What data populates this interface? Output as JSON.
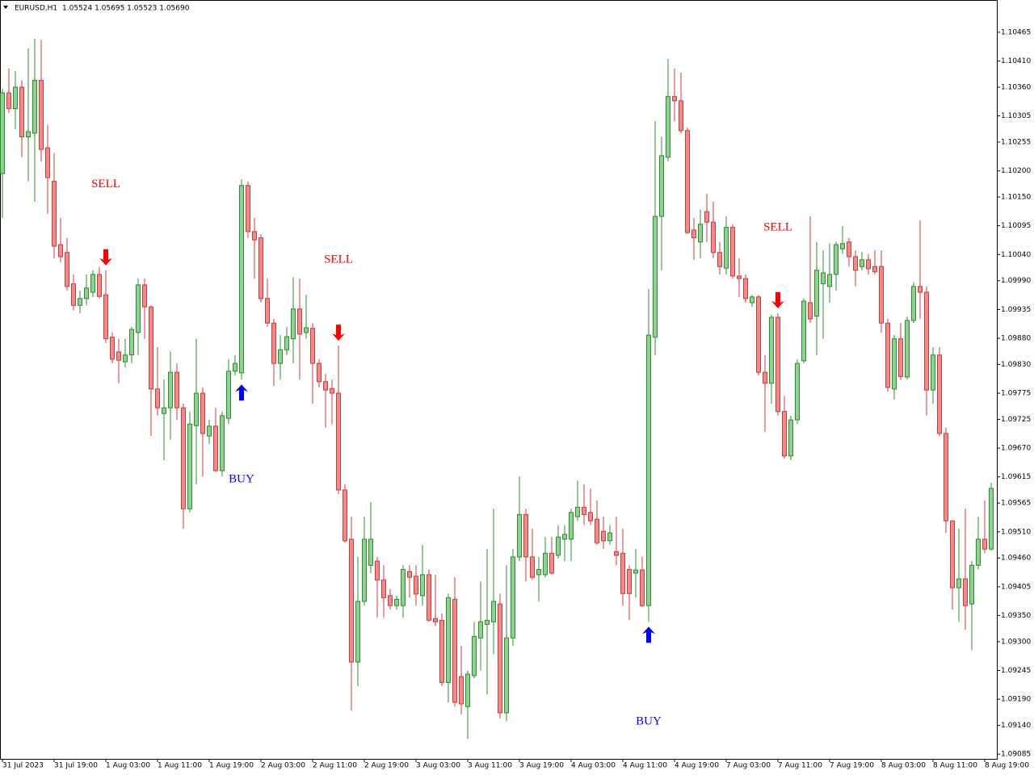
{
  "chart_data": {
    "type": "candlestick",
    "symbol": "EURUSD,H1",
    "quote": "1.05524 1.05695 1.05523 1.05690",
    "up_color": "#8fd28f",
    "up_edge": "#2e8b2e",
    "down_color": "#f28a8a",
    "down_edge": "#c83c3c",
    "ylim": [
      1.09076,
      1.10522
    ],
    "yticks": [
      1.10465,
      {
        "value": 1.1041,
        "label": "1.10410"
      },
      {
        "value": 1.1036,
        "label": "1.10360"
      },
      1.10305,
      1.10255,
      {
        "value": 1.102,
        "label": "1.10200"
      },
      {
        "value": 1.1015,
        "label": "1.10150"
      },
      1.10095,
      {
        "value": 1.1004,
        "label": "1.10040"
      },
      {
        "value": 1.0999,
        "label": "1.09990"
      },
      1.09935,
      {
        "value": 1.0988,
        "label": "1.09880"
      },
      {
        "value": 1.0983,
        "label": "1.09830"
      },
      1.09775,
      1.09725,
      {
        "value": 1.0967,
        "label": "1.09670"
      },
      1.09615,
      1.09565,
      {
        "value": 1.0951,
        "label": "1.09510"
      },
      {
        "value": 1.0946,
        "label": "1.09460"
      },
      1.09405,
      {
        "value": 1.0935,
        "label": "1.09350"
      },
      {
        "value": 1.093,
        "label": "1.09300"
      },
      1.09245,
      {
        "value": 1.0919,
        "label": "1.09190"
      },
      {
        "value": 1.0914,
        "label": "1.09140"
      },
      1.09085
    ],
    "categories": [
      "31 Jul 2023",
      null,
      null,
      null,
      null,
      null,
      null,
      null,
      "31 Jul 19:00",
      null,
      null,
      null,
      null,
      null,
      null,
      null,
      "1 Aug 03:00",
      null,
      null,
      null,
      null,
      null,
      null,
      null,
      "1 Aug 11:00",
      null,
      null,
      null,
      null,
      null,
      null,
      null,
      "1 Aug 19:00",
      null,
      null,
      null,
      null,
      null,
      null,
      null,
      "2 Aug 03:00",
      null,
      null,
      null,
      null,
      null,
      null,
      null,
      "2 Aug 11:00",
      null,
      null,
      null,
      null,
      null,
      null,
      null,
      "2 Aug 19:00",
      null,
      null,
      null,
      null,
      null,
      null,
      null,
      "3 Aug 03:00",
      null,
      null,
      null,
      null,
      null,
      null,
      null,
      "3 Aug 11:00",
      null,
      null,
      null,
      null,
      null,
      null,
      null,
      "3 Aug 19:00",
      null,
      null,
      null,
      null,
      null,
      null,
      null,
      "4 Aug 03:00",
      null,
      null,
      null,
      null,
      null,
      null,
      null,
      "4 Aug 11:00",
      null,
      null,
      null,
      null,
      null,
      null,
      null,
      "4 Aug 19:00",
      null,
      null,
      null,
      null,
      null,
      null,
      null,
      "7 Aug 03:00",
      null,
      null,
      null,
      null,
      null,
      null,
      null,
      "7 Aug 11:00",
      null,
      null,
      null,
      null,
      null,
      null,
      null,
      "7 Aug 19:00",
      null,
      null,
      null,
      null,
      null,
      null,
      null,
      "8 Aug 03:00",
      null,
      null,
      null,
      null,
      null,
      null,
      null,
      "8 Aug 11:00",
      null,
      null,
      null,
      null,
      null,
      null,
      null,
      "8 Aug 19:00",
      null
    ],
    "values": [
      [
        1.10195,
        1.10357,
        1.1011,
        1.10349
      ],
      [
        1.10349,
        1.10396,
        1.10311,
        1.10319
      ],
      [
        1.10319,
        1.10391,
        1.1028,
        1.1036
      ],
      [
        1.1036,
        1.10373,
        1.10226,
        1.10265
      ],
      [
        1.10265,
        1.10434,
        1.1018,
        1.10275
      ],
      [
        1.10272,
        1.10453,
        1.10141,
        1.10373
      ],
      [
        1.10373,
        1.1045,
        1.10218,
        1.10241
      ],
      [
        1.10244,
        1.10288,
        1.10118,
        1.10187
      ],
      [
        1.1018,
        1.10234,
        1.10033,
        1.10056
      ],
      [
        1.10059,
        1.1011,
        1.10025,
        1.10036
      ],
      [
        1.10044,
        1.10072,
        1.09971,
        1.09979
      ],
      [
        1.09984,
        1.10002,
        1.09933,
        1.09943
      ],
      [
        1.09943,
        1.09971,
        1.09928,
        1.09956
      ],
      [
        1.09956,
        1.10002,
        1.09943,
        1.09976
      ],
      [
        1.09968,
        1.1001,
        1.09959,
        1.10002
      ],
      [
        1.10002,
        1.10017,
        1.09956,
        1.0996
      ],
      [
        1.09963,
        1.1001,
        1.09871,
        1.09879
      ],
      [
        1.09882,
        1.09891,
        1.09832,
        1.0984
      ],
      [
        1.09854,
        1.09879,
        1.09794,
        1.09838
      ],
      [
        1.09835,
        1.09879,
        1.09824,
        1.09848
      ],
      [
        1.09848,
        1.09902,
        1.09832,
        1.09897
      ],
      [
        1.09891,
        1.09994,
        1.09848,
        1.09982
      ],
      [
        1.09982,
        1.09994,
        1.09879,
        1.0994
      ],
      [
        1.0994,
        1.09943,
        1.09693,
        1.09783
      ],
      [
        1.09783,
        1.09863,
        1.09732,
        1.09747
      ],
      [
        1.09736,
        1.09801,
        1.09647,
        1.09747
      ],
      [
        1.09747,
        1.09855,
        1.09686,
        1.09815
      ],
      [
        1.09815,
        1.09832,
        1.09724,
        1.09747
      ],
      [
        1.09747,
        1.09755,
        1.09516,
        1.09554
      ],
      [
        1.09554,
        1.0974,
        1.09547,
        1.09716
      ],
      [
        1.09713,
        1.09879,
        1.09601,
        1.09775
      ],
      [
        1.09775,
        1.09786,
        1.09616,
        1.09698
      ],
      [
        1.09693,
        1.09724,
        1.09678,
        1.09712
      ],
      [
        1.09712,
        1.09747,
        1.09624,
        1.09627
      ],
      [
        1.09627,
        1.0974,
        1.09616,
        1.09732
      ],
      [
        1.09727,
        1.0984,
        1.09716,
        1.09817
      ],
      [
        1.09817,
        1.09848,
        1.09809,
        1.09832
      ],
      [
        1.09814,
        1.10184,
        1.09801,
        1.10172
      ],
      [
        1.10172,
        1.1018,
        1.10072,
        1.10084
      ],
      [
        1.10084,
        1.1011,
        1.09994,
        1.10068
      ],
      [
        1.10072,
        1.10079,
        1.09948,
        1.09956
      ],
      [
        1.09956,
        1.09994,
        1.09902,
        1.09909
      ],
      [
        1.09909,
        1.09917,
        1.09789,
        1.09832
      ],
      [
        1.09832,
        1.09886,
        1.09801,
        1.09858
      ],
      [
        1.09858,
        1.09902,
        1.09848,
        1.09883
      ],
      [
        1.09879,
        1.09997,
        1.09832,
        1.09936
      ],
      [
        1.09936,
        1.09994,
        1.09801,
        1.09888
      ],
      [
        1.09891,
        1.09963,
        1.09879,
        1.099
      ],
      [
        1.09899,
        1.09909,
        1.09755,
        1.09832
      ],
      [
        1.09832,
        1.0984,
        1.09786,
        1.09797
      ],
      [
        1.09797,
        1.09812,
        1.09709,
        1.09781
      ],
      [
        1.09784,
        1.09801,
        1.09716,
        1.09775
      ],
      [
        1.09775,
        1.09866,
        1.09582,
        1.0959
      ],
      [
        1.0959,
        1.09601,
        1.09489,
        1.09493
      ],
      [
        1.09496,
        1.09539,
        1.09168,
        1.09261
      ],
      [
        1.09261,
        1.09462,
        1.09215,
        1.09377
      ],
      [
        1.09377,
        1.09539,
        1.09369,
        1.09496
      ],
      [
        1.09446,
        1.09567,
        1.09431,
        1.09496
      ],
      [
        1.09454,
        1.09462,
        1.09346,
        1.09418
      ],
      [
        1.09418,
        1.09446,
        1.09346,
        1.09384
      ],
      [
        1.09388,
        1.094,
        1.09361,
        1.09369
      ],
      [
        1.09369,
        1.09388,
        1.09361,
        1.09381
      ],
      [
        1.09369,
        1.09446,
        1.09346,
        1.09438
      ],
      [
        1.09434,
        1.09446,
        1.09384,
        1.09423
      ],
      [
        1.09425,
        1.09446,
        1.09369,
        1.09391
      ],
      [
        1.09388,
        1.09485,
        1.09369,
        1.09428
      ],
      [
        1.09428,
        1.09438,
        1.09338,
        1.09341
      ],
      [
        1.09344,
        1.09428,
        1.0933,
        1.09338
      ],
      [
        1.09341,
        1.09354,
        1.09215,
        1.09222
      ],
      [
        1.09222,
        1.09392,
        1.09184,
        1.09384
      ],
      [
        1.09381,
        1.09423,
        1.09176,
        1.09184
      ],
      [
        1.09233,
        1.09292,
        1.09161,
        1.09181
      ],
      [
        1.09176,
        1.09245,
        1.09114,
        1.09238
      ],
      [
        1.09235,
        1.09338,
        1.0923,
        1.0931
      ],
      [
        1.09307,
        1.09415,
        1.09245,
        1.09338
      ],
      [
        1.09333,
        1.09477,
        1.09199,
        1.09341
      ],
      [
        1.09338,
        1.09554,
        1.09276,
        1.09377
      ],
      [
        1.09372,
        1.09392,
        1.09153,
        1.09164
      ],
      [
        1.09164,
        1.09446,
        1.09148,
        1.09307
      ],
      [
        1.09307,
        1.09477,
        1.09292,
        1.09462
      ],
      [
        1.09462,
        1.09616,
        1.09454,
        1.09543
      ],
      [
        1.09543,
        1.09554,
        1.09415,
        1.09462
      ],
      [
        1.09462,
        1.09516,
        1.09418,
        1.09423
      ],
      [
        1.09428,
        1.09462,
        1.09377,
        1.09438
      ],
      [
        1.09428,
        1.095,
        1.09423,
        1.09469
      ],
      [
        1.09469,
        1.095,
        1.09428,
        1.09431
      ],
      [
        1.09465,
        1.09523,
        1.09459,
        1.095
      ],
      [
        1.09496,
        1.09523,
        1.09454,
        1.09505
      ],
      [
        1.09496,
        1.09554,
        1.09454,
        1.09547
      ],
      [
        1.09539,
        1.09608,
        1.09531,
        1.09557
      ],
      [
        1.09557,
        1.09601,
        1.09523,
        1.09543
      ],
      [
        1.09547,
        1.09593,
        1.09523,
        1.09531
      ],
      [
        1.09534,
        1.0957,
        1.09485,
        1.09489
      ],
      [
        1.09511,
        1.09539,
        1.09477,
        1.09493
      ],
      [
        1.09493,
        1.09523,
        1.09485,
        1.09508
      ],
      [
        1.09472,
        1.09539,
        1.09446,
        1.09465
      ],
      [
        1.09469,
        1.09516,
        1.09369,
        1.09392
      ],
      [
        1.09438,
        1.09446,
        1.09341,
        1.09392
      ],
      [
        1.09431,
        1.09477,
        1.09384,
        1.09437
      ],
      [
        1.09437,
        1.09462,
        1.09366,
        1.09369
      ],
      [
        1.09369,
        1.09974,
        1.09338,
        1.09886
      ],
      [
        1.09882,
        1.10295,
        1.09848,
        1.10113
      ],
      [
        1.10113,
        1.10265,
        1.1001,
        1.10229
      ],
      [
        1.10226,
        1.10414,
        1.10218,
        1.10342
      ],
      [
        1.10342,
        1.10396,
        1.10295,
        1.10334
      ],
      [
        1.10334,
        1.10388,
        1.10272,
        1.10277
      ],
      [
        1.10277,
        1.10283,
        1.10079,
        1.10082
      ],
      [
        1.10087,
        1.1011,
        1.1003,
        1.10072
      ],
      [
        1.10064,
        1.10126,
        1.10033,
        1.10098
      ],
      [
        1.10122,
        1.10156,
        1.10064,
        1.10102
      ],
      [
        1.10102,
        1.10141,
        1.10033,
        1.10044
      ],
      [
        1.10044,
        1.10064,
        1.10002,
        1.10017
      ],
      [
        1.10014,
        1.10113,
        1.10002,
        1.10092
      ],
      [
        1.10092,
        1.10098,
        1.09994,
        1.09999
      ],
      [
        1.09999,
        1.10033,
        1.09959,
        1.09994
      ],
      [
        1.09994,
        1.10002,
        1.09948,
        1.09956
      ],
      [
        1.09948,
        1.09963,
        1.0994,
        1.09959
      ],
      [
        1.09959,
        1.09963,
        1.09809,
        1.09815
      ],
      [
        1.09815,
        1.09848,
        1.09701,
        1.09794
      ],
      [
        1.09794,
        1.09925,
        1.09755,
        1.0992
      ],
      [
        1.0992,
        1.09928,
        1.09732,
        1.0974
      ],
      [
        1.0974,
        1.0977,
        1.0965,
        1.09655
      ],
      [
        1.09655,
        1.09732,
        1.09647,
        1.09724
      ],
      [
        1.09724,
        1.0984,
        1.09716,
        1.09832
      ],
      [
        1.09837,
        1.09956,
        1.09832,
        1.09951
      ],
      [
        1.09948,
        1.10113,
        1.09909,
        1.09917
      ],
      [
        1.09922,
        1.10064,
        1.09848,
        1.1001
      ],
      [
        1.09984,
        1.10048,
        1.09879,
        1.10005
      ],
      [
        1.09979,
        1.10061,
        1.09948,
        1.10002
      ],
      [
        1.10002,
        1.10064,
        1.09971,
        1.10059
      ],
      [
        1.10051,
        1.10095,
        1.10041,
        1.10061
      ],
      [
        1.10064,
        1.10072,
        1.10017,
        1.10036
      ],
      [
        1.10036,
        1.10048,
        1.09979,
        1.1001
      ],
      [
        1.10017,
        1.10045,
        1.1001,
        1.1003
      ],
      [
        1.1003,
        1.10041,
        1.10002,
        1.10013
      ],
      [
        1.10017,
        1.10048,
        1.10002,
        1.10007
      ],
      [
        1.10017,
        1.10048,
        1.09891,
        1.09909
      ],
      [
        1.09909,
        1.09917,
        1.09778,
        1.09786
      ],
      [
        1.09783,
        1.09886,
        1.09763,
        1.09879
      ],
      [
        1.09879,
        1.09909,
        1.09801,
        1.09807
      ],
      [
        1.09806,
        1.09922,
        1.09801,
        1.09914
      ],
      [
        1.09914,
        1.09987,
        1.09909,
        1.09979
      ],
      [
        1.09979,
        1.10105,
        1.09917,
        1.09968
      ],
      [
        1.09968,
        1.09979,
        1.09732,
        1.09781
      ],
      [
        1.09781,
        1.09863,
        1.09755,
        1.09848
      ],
      [
        1.09848,
        1.09863,
        1.09693,
        1.09698
      ],
      [
        1.09698,
        1.09709,
        1.09508,
        1.09531
      ],
      [
        1.09531,
        1.09531,
        1.09361,
        1.09403
      ],
      [
        1.09403,
        1.09516,
        1.09338,
        1.0942
      ],
      [
        1.0942,
        1.09554,
        1.09323,
        1.09369
      ],
      [
        1.09372,
        1.09454,
        1.09284,
        1.09446
      ],
      [
        1.09446,
        1.09539,
        1.09438,
        1.09496
      ],
      [
        1.09496,
        1.0957,
        1.09469,
        1.09477
      ],
      [
        1.09477,
        1.09604,
        1.09474,
        1.09593
      ]
    ],
    "signals": [
      {
        "label": "SELL",
        "index": 16,
        "direction": "down",
        "color": "#ff0000"
      },
      {
        "label": "BUY",
        "index": 37,
        "direction": "up",
        "color": "#0000ff"
      },
      {
        "label": "SELL",
        "index": 52,
        "direction": "down",
        "color": "#ff0000"
      },
      {
        "label": "BUY",
        "index": 100,
        "direction": "up",
        "color": "#0000ff"
      },
      {
        "label": "SELL",
        "index": 120,
        "direction": "down",
        "color": "#ff0000"
      }
    ]
  }
}
